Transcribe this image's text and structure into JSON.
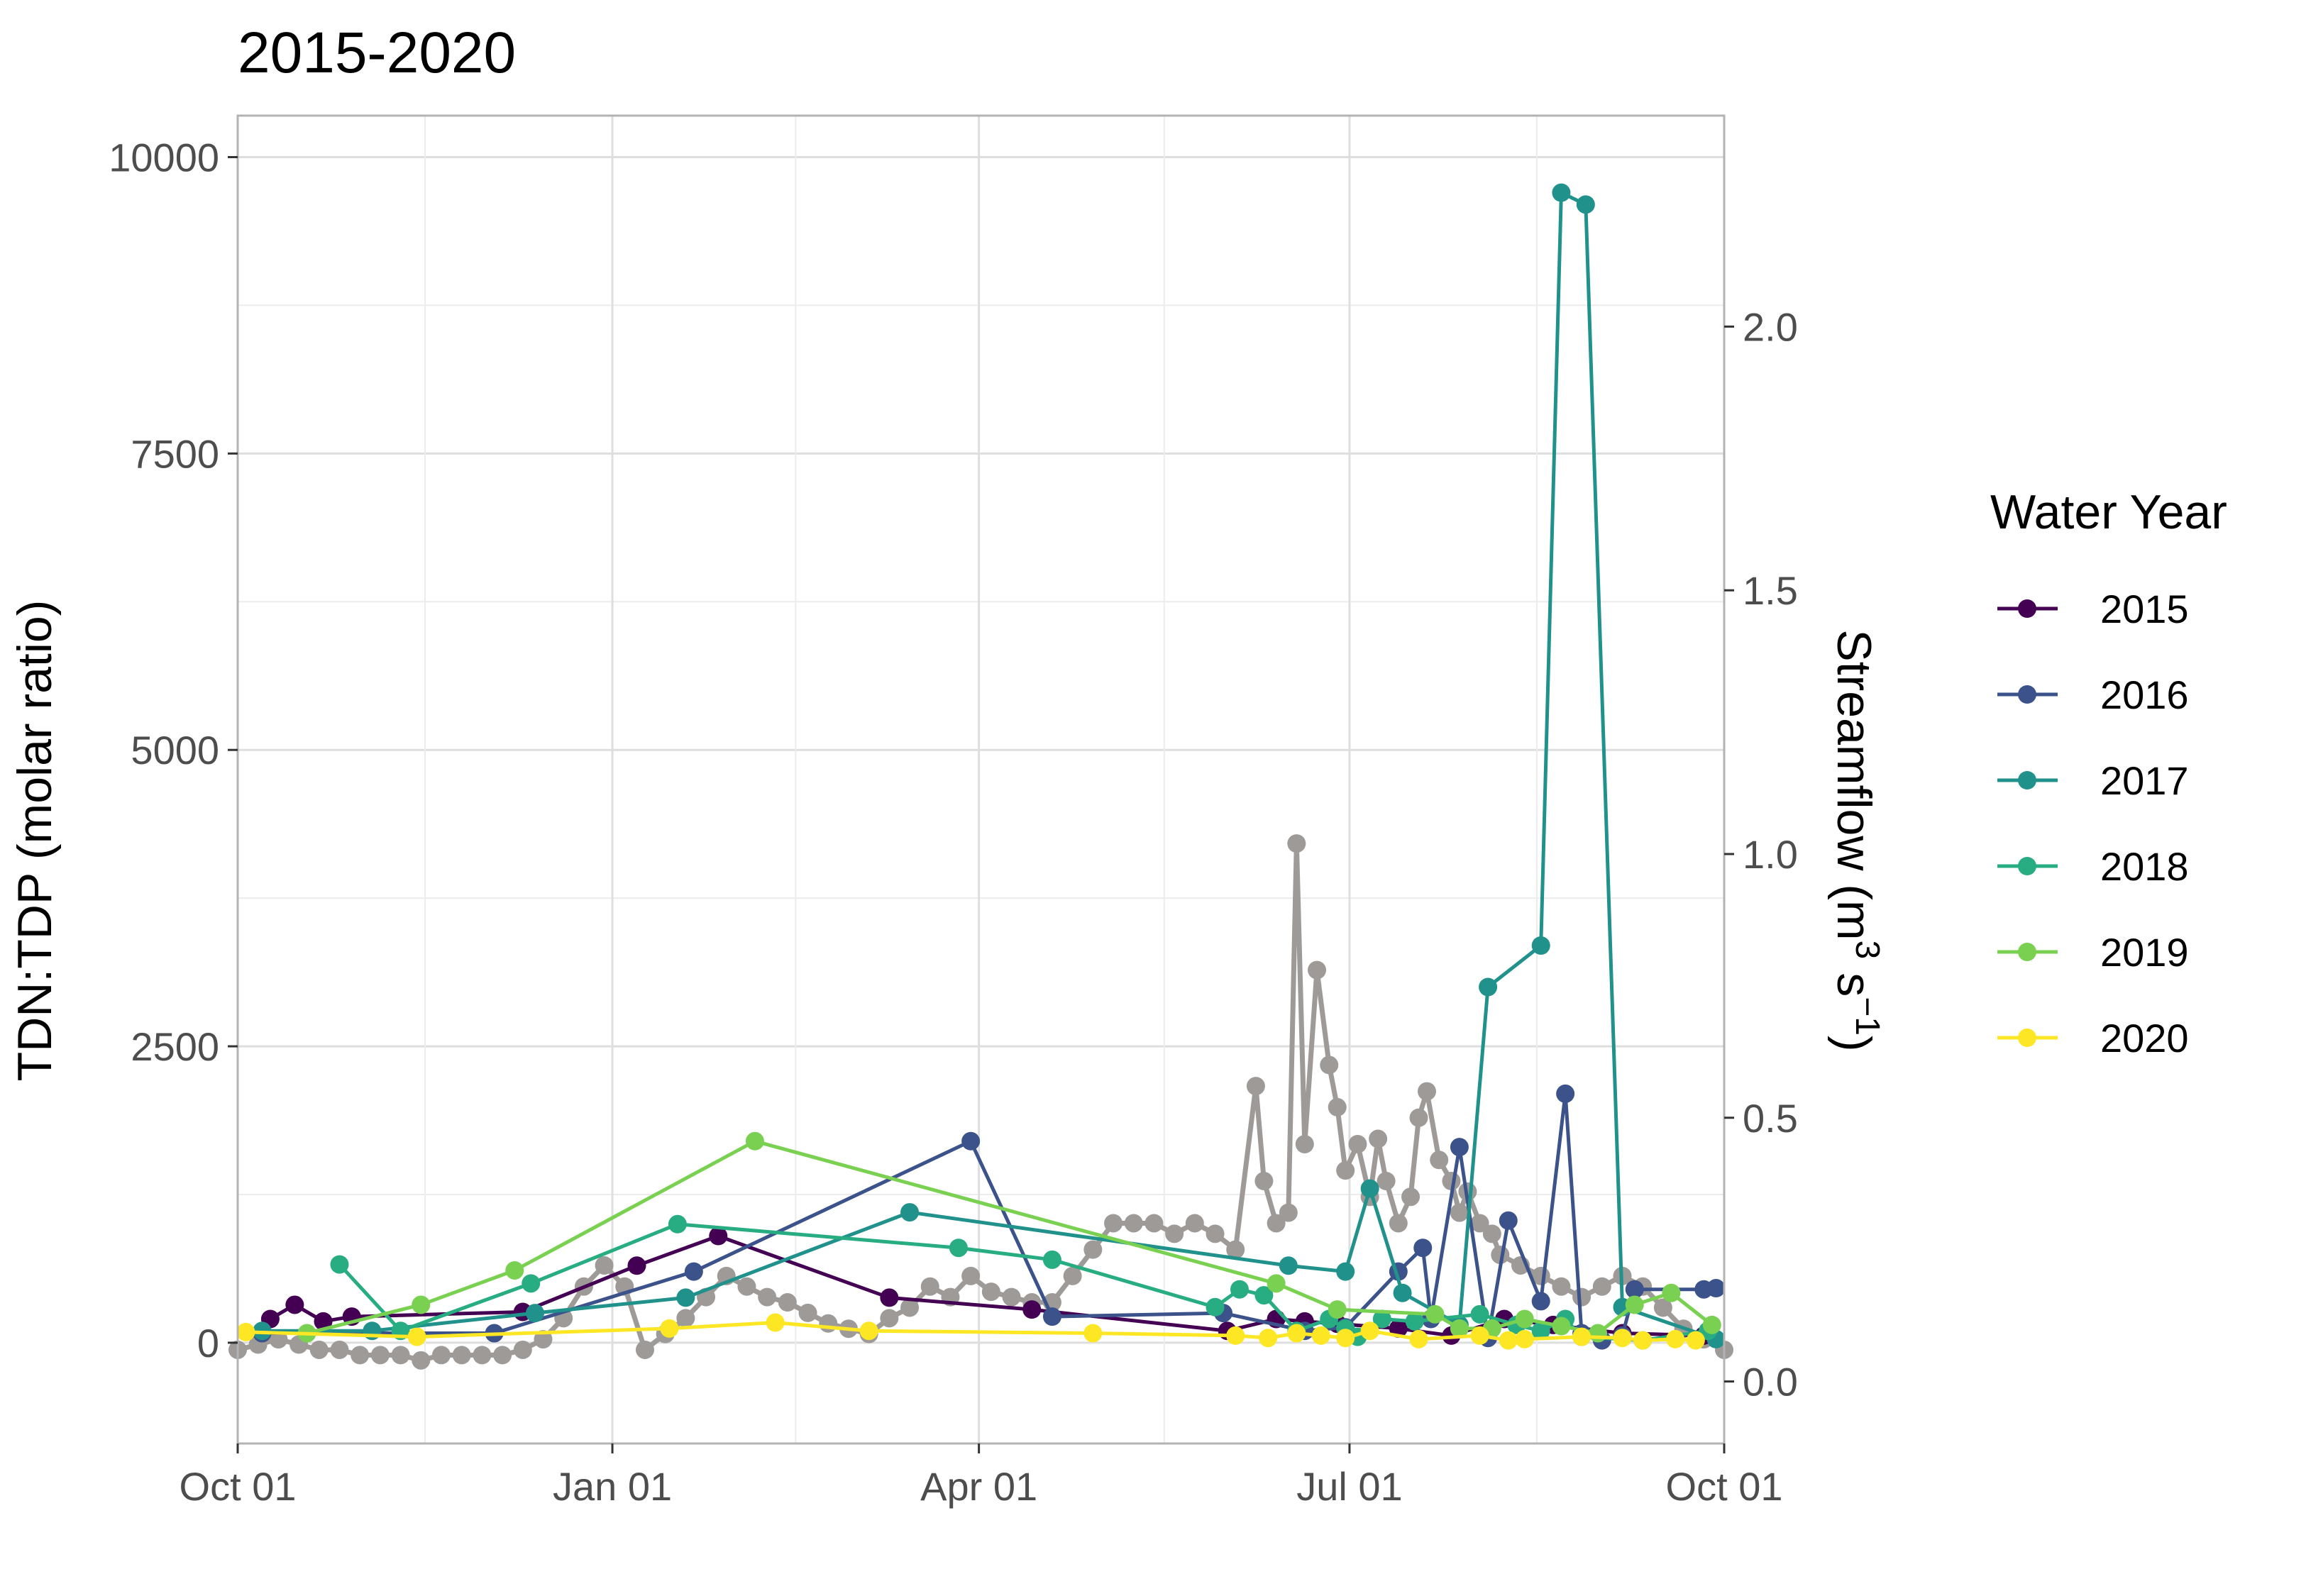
{
  "chart_data": {
    "type": "line",
    "title": "2015-2020",
    "ylabel": "TDN:TDP (molar ratio)",
    "y2label": {
      "main": "Streamflow (m",
      "sup1": "3",
      "mid": " s",
      "sup2": "−1",
      "end": ")"
    },
    "xlim": [
      0,
      365
    ],
    "ylim": [
      -850,
      10350
    ],
    "y2lim": [
      -0.1176,
      2.4
    ],
    "x_tick_values": [
      0,
      92,
      182,
      273,
      365
    ],
    "x_ticks": [
      "Oct 01",
      "Jan 01",
      "Apr 01",
      "Jul 01",
      "Oct 01"
    ],
    "y_tick_values": [
      0,
      2500,
      5000,
      7500,
      10000
    ],
    "y_ticks": [
      "0",
      "2500",
      "5000",
      "7500",
      "10000"
    ],
    "y2_tick_values": [
      0.0,
      0.5,
      1.0,
      1.5,
      2.0
    ],
    "y2_ticks": [
      "0.0",
      "0.5",
      "1.0",
      "1.5",
      "2.0"
    ],
    "grid": true,
    "legend": {
      "title": "Water Year",
      "position": "right"
    },
    "streamflow_color": "#9e9a98",
    "streamflow": {
      "x": [
        0,
        5,
        10,
        15,
        20,
        25,
        30,
        35,
        40,
        45,
        50,
        55,
        60,
        65,
        70,
        75,
        80,
        85,
        90,
        95,
        100,
        105,
        110,
        115,
        120,
        125,
        130,
        135,
        140,
        145,
        150,
        155,
        160,
        165,
        170,
        175,
        180,
        185,
        190,
        195,
        200,
        205,
        210,
        215,
        220,
        225,
        230,
        235,
        240,
        245,
        250,
        252,
        255,
        258,
        260,
        262,
        265,
        268,
        270,
        272,
        275,
        278,
        280,
        282,
        285,
        288,
        290,
        292,
        295,
        298,
        300,
        302,
        305,
        308,
        310,
        315,
        320,
        325,
        330,
        335,
        340,
        345,
        350,
        355,
        360,
        365
      ],
      "y": [
        0.06,
        0.07,
        0.08,
        0.07,
        0.06,
        0.06,
        0.05,
        0.05,
        0.05,
        0.04,
        0.05,
        0.05,
        0.05,
        0.05,
        0.06,
        0.08,
        0.12,
        0.18,
        0.22,
        0.18,
        0.06,
        0.09,
        0.12,
        0.16,
        0.2,
        0.18,
        0.16,
        0.15,
        0.13,
        0.11,
        0.1,
        0.09,
        0.12,
        0.14,
        0.18,
        0.16,
        0.2,
        0.17,
        0.16,
        0.15,
        0.15,
        0.2,
        0.25,
        0.3,
        0.3,
        0.3,
        0.28,
        0.3,
        0.28,
        0.25,
        0.56,
        0.38,
        0.3,
        0.32,
        1.02,
        0.45,
        0.78,
        0.6,
        0.52,
        0.4,
        0.45,
        0.35,
        0.46,
        0.38,
        0.3,
        0.35,
        0.5,
        0.55,
        0.42,
        0.38,
        0.32,
        0.36,
        0.3,
        0.28,
        0.24,
        0.22,
        0.2,
        0.18,
        0.16,
        0.18,
        0.2,
        0.18,
        0.14,
        0.1,
        0.08,
        0.06
      ]
    },
    "series": [
      {
        "name": "2015",
        "color": "#440154",
        "x": [
          8,
          14,
          21,
          28,
          70,
          98,
          118,
          160,
          195,
          243,
          255,
          262,
          270,
          285,
          298,
          311,
          323,
          340,
          360
        ],
        "y": [
          200,
          320,
          180,
          220,
          260,
          650,
          900,
          380,
          280,
          100,
          200,
          180,
          160,
          120,
          60,
          200,
          150,
          80,
          60
        ]
      },
      {
        "name": "2016",
        "color": "#3b528b",
        "x": [
          6,
          63,
          112,
          180,
          200,
          242,
          262,
          272,
          285,
          291,
          293,
          300,
          307,
          312,
          320,
          326,
          330,
          335,
          340,
          343,
          360,
          363
        ],
        "y": [
          80,
          80,
          600,
          1700,
          220,
          250,
          100,
          130,
          600,
          800,
          200,
          1650,
          40,
          1030,
          350,
          2100,
          80,
          20,
          60,
          450,
          450,
          460
        ]
      },
      {
        "name": "2017",
        "color": "#21918c",
        "x": [
          6,
          33,
          73,
          110,
          165,
          258,
          272,
          278,
          286,
          300,
          307,
          320,
          325,
          331,
          340,
          363
        ],
        "y": [
          100,
          100,
          250,
          380,
          1100,
          650,
          600,
          1300,
          420,
          150,
          3000,
          3350,
          9700,
          9600,
          300,
          30
        ]
      },
      {
        "name": "2018",
        "color": "#27ad81",
        "x": [
          25,
          40,
          72,
          108,
          177,
          200,
          240,
          246,
          252,
          260,
          268,
          272,
          275,
          281,
          289,
          305,
          314,
          320,
          326,
          330,
          345,
          361
        ],
        "y": [
          660,
          100,
          500,
          1000,
          800,
          700,
          300,
          450,
          400,
          100,
          200,
          120,
          50,
          200,
          180,
          240,
          150,
          100,
          200,
          50,
          20,
          100
        ]
      },
      {
        "name": "2019",
        "color": "#7ad151",
        "x": [
          17,
          45,
          68,
          127,
          255,
          270,
          294,
          300,
          308,
          316,
          325,
          334,
          343,
          352,
          362
        ],
        "y": [
          80,
          320,
          610,
          1700,
          500,
          280,
          240,
          120,
          120,
          200,
          140,
          80,
          320,
          420,
          150
        ]
      },
      {
        "name": "2020",
        "color": "#fde725",
        "x": [
          2,
          44,
          106,
          132,
          155,
          210,
          245,
          253,
          260,
          266,
          272,
          278,
          290,
          305,
          312,
          316,
          330,
          340,
          345,
          353,
          358
        ],
        "y": [
          90,
          50,
          120,
          170,
          100,
          80,
          60,
          40,
          80,
          60,
          40,
          100,
          30,
          60,
          20,
          30,
          50,
          40,
          20,
          30,
          20
        ]
      }
    ]
  }
}
